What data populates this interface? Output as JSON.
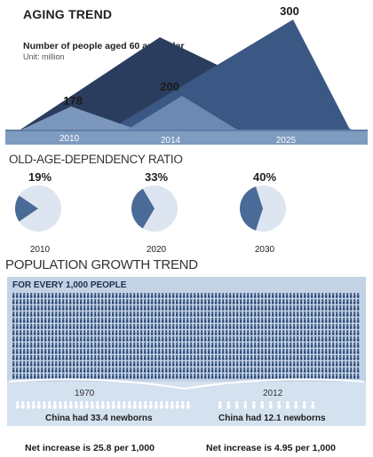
{
  "header": {
    "title": "AGING TREND",
    "subtitle": "Number of people aged 60 and older",
    "unit": "Unit: million"
  },
  "chart_data": [
    {
      "type": "area",
      "categories": [
        "2010",
        "2014",
        "2025"
      ],
      "values": [
        178,
        200,
        300
      ],
      "title": "AGING TREND"
    },
    {
      "type": "pie",
      "title": "OLD-AGE-DEPENDENCY RATIO",
      "categories": [
        "2010",
        "2020",
        "2030"
      ],
      "values": [
        19,
        33,
        40
      ],
      "labels": [
        "19%",
        "33%",
        "40%"
      ]
    }
  ],
  "growth": {
    "title": "POPULATION GROWTH TREND",
    "box_label": "FOR EVERY 1,000 PEOPLE",
    "left": {
      "year": "1970",
      "text": "China had 33.4 newborns",
      "net": "Net increase is 25.8 per 1,000"
    },
    "right": {
      "year": "2012",
      "text": "China had 12.1 newborns",
      "net": "Net increase is 4.95 per 1,000"
    }
  },
  "colors": {
    "dark": "#2b3d5e",
    "mid": "#5575a0",
    "light": "#7c97bd",
    "band": "#7e9bc0",
    "pie_bg": "#dde5f0",
    "pie_fill": "#4a6a97",
    "people": "#2e4a78",
    "people_light": "#ffffff"
  }
}
